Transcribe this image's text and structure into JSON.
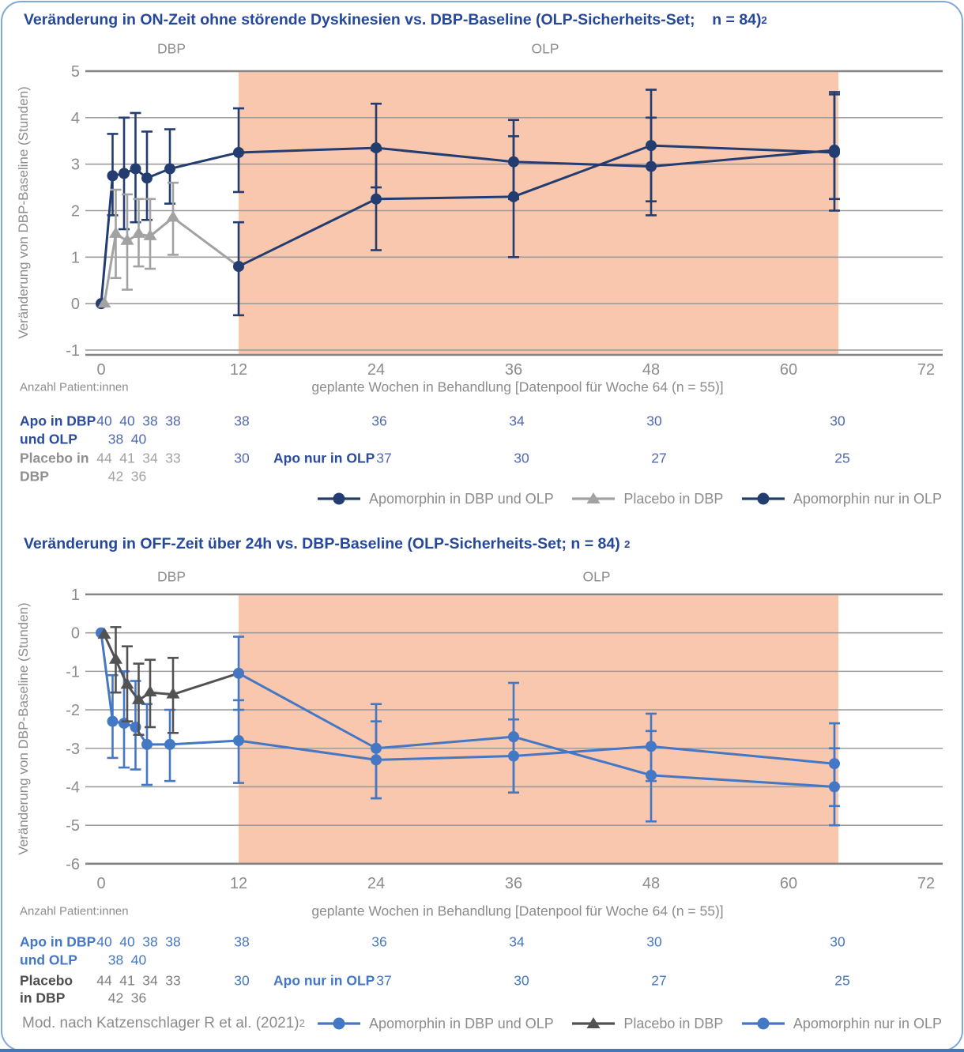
{
  "colors": {
    "title_blue": "#26489b",
    "olp_shade": "#f8c7ad",
    "grid": "#9c9c9c",
    "axis": "#858585",
    "muted_text": "#8c8c8c",
    "panel1_apomorphin": "#233d70",
    "panel1_placebo": "#a2a2a2",
    "panel2_apomorphin": "#4478c4",
    "panel2_placebo": "#525252",
    "card_border": "#7fa9da",
    "card_bottom_bar": "#4377b8"
  },
  "footer": {
    "text": "Mod. nach Katzenschlager R et al. (2021)",
    "sup": "2"
  },
  "chart_data": [
    {
      "type": "line",
      "title": "Veränderung in ON-Zeit ohne störende Dyskinesien vs. DBP-Baseline (OLP-Sicherheits-Set;    n = 84)",
      "title_sup": "2",
      "phases": {
        "dbp_label": "DBP",
        "olp_label": "OLP",
        "olp_shade_weeks": [
          12,
          64.35
        ]
      },
      "ylabel": "Veränderung von DBP-Baseline (Stunden)",
      "xlabel": "geplante Wochen in Behandlung [Datenpool für Woche 64 (n = 55)]",
      "y_ticks": [
        5,
        4,
        3,
        2,
        1,
        0,
        -1
      ],
      "x_ticks": [
        0,
        12,
        24,
        36,
        48,
        60,
        72
      ],
      "ylim": [
        -1.1,
        5
      ],
      "xlim": [
        0,
        73.5
      ],
      "legend_position": "bottom",
      "grid": true,
      "series": [
        {
          "name": "Apomorphin in DBP und OLP",
          "marker": "circle",
          "color": "#233d70",
          "x": [
            0,
            1,
            2,
            3,
            4,
            6,
            12,
            24,
            36,
            48,
            64
          ],
          "y": [
            0,
            2.75,
            2.8,
            2.9,
            2.7,
            2.9,
            3.25,
            3.35,
            3.05,
            2.95,
            3.3
          ],
          "err_lo": [
            null,
            1.9,
            1.6,
            1.75,
            1.8,
            2.15,
            2.4,
            2.5,
            2.25,
            1.9,
            2.0
          ],
          "err_hi": [
            null,
            3.65,
            4.0,
            4.1,
            3.7,
            3.75,
            4.2,
            4.3,
            3.95,
            4.0,
            4.5
          ]
        },
        {
          "name": "Placebo in DBP",
          "marker": "triangle",
          "color": "#a2a2a2",
          "dx": 4,
          "x": [
            0,
            1,
            2,
            3,
            4,
            6
          ],
          "y": [
            0,
            1.5,
            1.35,
            1.5,
            1.45,
            1.85
          ],
          "err_lo": [
            null,
            0.55,
            0.3,
            0.8,
            0.75,
            1.05
          ],
          "err_hi": [
            null,
            2.45,
            2.35,
            2.25,
            2.25,
            2.6
          ]
        },
        {
          "name": "Apomorphin nur in OLP",
          "marker": "circle",
          "color": "#233d70",
          "connector_from_placebo": true,
          "x": [
            12,
            24,
            36,
            48,
            64
          ],
          "y": [
            0.8,
            2.25,
            2.3,
            3.4,
            3.25
          ],
          "err_lo": [
            -0.25,
            1.15,
            1.0,
            2.2,
            2.25
          ],
          "err_hi": [
            1.75,
            3.3,
            3.6,
            4.6,
            4.55
          ]
        }
      ],
      "counts": {
        "heading": "Anzahl Patient:innen",
        "groups": [
          {
            "label_lines": [
              "Apo in DBP",
              "und OLP"
            ],
            "label_color": "#2b4b9d",
            "number_color": "#5068b0",
            "highlight_color": "#5068b0",
            "entries": [
              {
                "w": 0,
                "n": "40",
                "row": 1
              },
              {
                "w": 1,
                "n": "38",
                "row": 2
              },
              {
                "w": 2,
                "n": "40",
                "row": 1
              },
              {
                "w": 3,
                "n": "40",
                "row": 2
              },
              {
                "w": 4,
                "n": "38",
                "row": 1
              },
              {
                "w": 6,
                "n": "38",
                "row": 1
              },
              {
                "w": 12,
                "n": "38",
                "row": 1
              },
              {
                "w": 24,
                "n": "36",
                "row": 1
              },
              {
                "w": 36,
                "n": "34",
                "row": 1
              },
              {
                "w": 48,
                "n": "30",
                "row": 1
              },
              {
                "w": 64,
                "n": "30",
                "row": 1
              }
            ]
          },
          {
            "label_lines": [
              "Placebo in",
              "DBP"
            ],
            "label_color": "#8f8f8f",
            "number_color": "#a2a2a2",
            "highlight_color": "#5068b0",
            "entries": [
              {
                "w": 0,
                "n": "44",
                "row": 1
              },
              {
                "w": 1,
                "n": "42",
                "row": 2
              },
              {
                "w": 2,
                "n": "41",
                "row": 1
              },
              {
                "w": 3,
                "n": "36",
                "row": 2
              },
              {
                "w": 4,
                "n": "34",
                "row": 1
              },
              {
                "w": 6,
                "n": "33",
                "row": 1
              },
              {
                "w": 12,
                "n": "30",
                "row": 1,
                "highlight": true
              }
            ]
          },
          {
            "label": "Apo nur in OLP",
            "label_color": "#2b4b9d",
            "number_color": "#5068b0",
            "highlight_color": "#5068b0",
            "entries": [
              {
                "w": 24,
                "n": "37",
                "row": 1
              },
              {
                "w": 36,
                "n": "30",
                "row": 1
              },
              {
                "w": 48,
                "n": "27",
                "row": 1
              },
              {
                "w": 64,
                "n": "25",
                "row": 1
              }
            ]
          }
        ]
      }
    },
    {
      "type": "line",
      "title": "Veränderung in OFF-Zeit über 24h vs. DBP-Baseline (OLP-Sicherheits-Set; n = 84) ",
      "title_sup": "2",
      "phases": {
        "dbp_label": "DBP",
        "olp_label": "OLP",
        "olp_shade_weeks": [
          12,
          64.35
        ]
      },
      "ylabel": "Veränderung von DBP-Baseline (Stunden)",
      "xlabel": "geplante Wochen in Behandlung [Datenpool für Woche 64 (n = 55)]",
      "y_ticks": [
        1,
        0,
        -1,
        -2,
        -3,
        -4,
        -5,
        -6
      ],
      "x_ticks": [
        0,
        12,
        24,
        36,
        48,
        60,
        72
      ],
      "ylim": [
        -6,
        1
      ],
      "xlim": [
        0,
        73.5
      ],
      "legend_position": "bottom",
      "grid": true,
      "series": [
        {
          "name": "Apomorphin in DBP und OLP",
          "marker": "circle",
          "color": "#4478c4",
          "x": [
            0,
            1,
            2,
            3,
            4,
            6,
            12,
            24,
            36,
            48,
            64
          ],
          "y": [
            0,
            -2.3,
            -2.35,
            -2.45,
            -2.9,
            -2.9,
            -2.8,
            -3.3,
            -3.2,
            -2.95,
            -3.4
          ],
          "err_lo": [
            null,
            -3.25,
            -3.5,
            -3.55,
            -3.95,
            -3.85,
            -3.9,
            -4.3,
            -4.15,
            -3.85,
            -4.5
          ],
          "err_hi": [
            null,
            -1.1,
            -1.0,
            -1.25,
            -1.85,
            -2.0,
            -1.75,
            -2.3,
            -2.25,
            -2.1,
            -2.35
          ]
        },
        {
          "name": "Placebo in DBP",
          "marker": "triangle",
          "color": "#525252",
          "dx": 4,
          "x": [
            0,
            1,
            2,
            3,
            4,
            6
          ],
          "y": [
            -0.05,
            -0.7,
            -1.35,
            -1.75,
            -1.55,
            -1.6
          ],
          "err_lo": [
            null,
            -1.55,
            -2.3,
            -2.65,
            -2.45,
            -2.6
          ],
          "err_hi": [
            null,
            0.15,
            -0.35,
            -0.8,
            -0.7,
            -0.65
          ]
        },
        {
          "name": "Apomorphin nur in OLP",
          "marker": "circle",
          "color": "#4478c4",
          "connector_from_placebo": true,
          "x": [
            12,
            24,
            36,
            48,
            64
          ],
          "y": [
            -1.05,
            -3.0,
            -2.7,
            -3.7,
            -4.0
          ],
          "err_lo": [
            -2.0,
            -4.3,
            -4.15,
            -4.9,
            -5.0
          ],
          "err_hi": [
            -0.1,
            -1.85,
            -1.3,
            -2.55,
            -3.0
          ]
        }
      ],
      "counts": {
        "heading": "Anzahl Patient:innen",
        "groups": [
          {
            "label_lines": [
              "Apo in DBP",
              "und OLP"
            ],
            "label_color": "#4478c4",
            "number_color": "#4478c4",
            "highlight_color": "#4478c4",
            "entries": [
              {
                "w": 0,
                "n": "40",
                "row": 1
              },
              {
                "w": 1,
                "n": "38",
                "row": 2
              },
              {
                "w": 2,
                "n": "40",
                "row": 1
              },
              {
                "w": 3,
                "n": "40",
                "row": 2
              },
              {
                "w": 4,
                "n": "38",
                "row": 1
              },
              {
                "w": 6,
                "n": "38",
                "row": 1
              },
              {
                "w": 12,
                "n": "38",
                "row": 1
              },
              {
                "w": 24,
                "n": "36",
                "row": 1
              },
              {
                "w": 36,
                "n": "34",
                "row": 1
              },
              {
                "w": 48,
                "n": "30",
                "row": 1
              },
              {
                "w": 64,
                "n": "30",
                "row": 1
              }
            ]
          },
          {
            "label_lines": [
              "Placebo",
              "in DBP"
            ],
            "label_color": "#4d4d4d",
            "number_color": "#7f7f7f",
            "highlight_color": "#4478c4",
            "entries": [
              {
                "w": 0,
                "n": "44",
                "row": 1
              },
              {
                "w": 1,
                "n": "42",
                "row": 2
              },
              {
                "w": 2,
                "n": "41",
                "row": 1
              },
              {
                "w": 3,
                "n": "36",
                "row": 2
              },
              {
                "w": 4,
                "n": "34",
                "row": 1
              },
              {
                "w": 6,
                "n": "33",
                "row": 1
              },
              {
                "w": 12,
                "n": "30",
                "row": 1,
                "highlight": true
              }
            ]
          },
          {
            "label": "Apo nur in OLP",
            "label_color": "#4478c4",
            "number_color": "#4478c4",
            "highlight_color": "#4478c4",
            "entries": [
              {
                "w": 24,
                "n": "37",
                "row": 1
              },
              {
                "w": 36,
                "n": "30",
                "row": 1
              },
              {
                "w": 48,
                "n": "27",
                "row": 1
              },
              {
                "w": 64,
                "n": "25",
                "row": 1
              }
            ]
          }
        ]
      }
    }
  ]
}
